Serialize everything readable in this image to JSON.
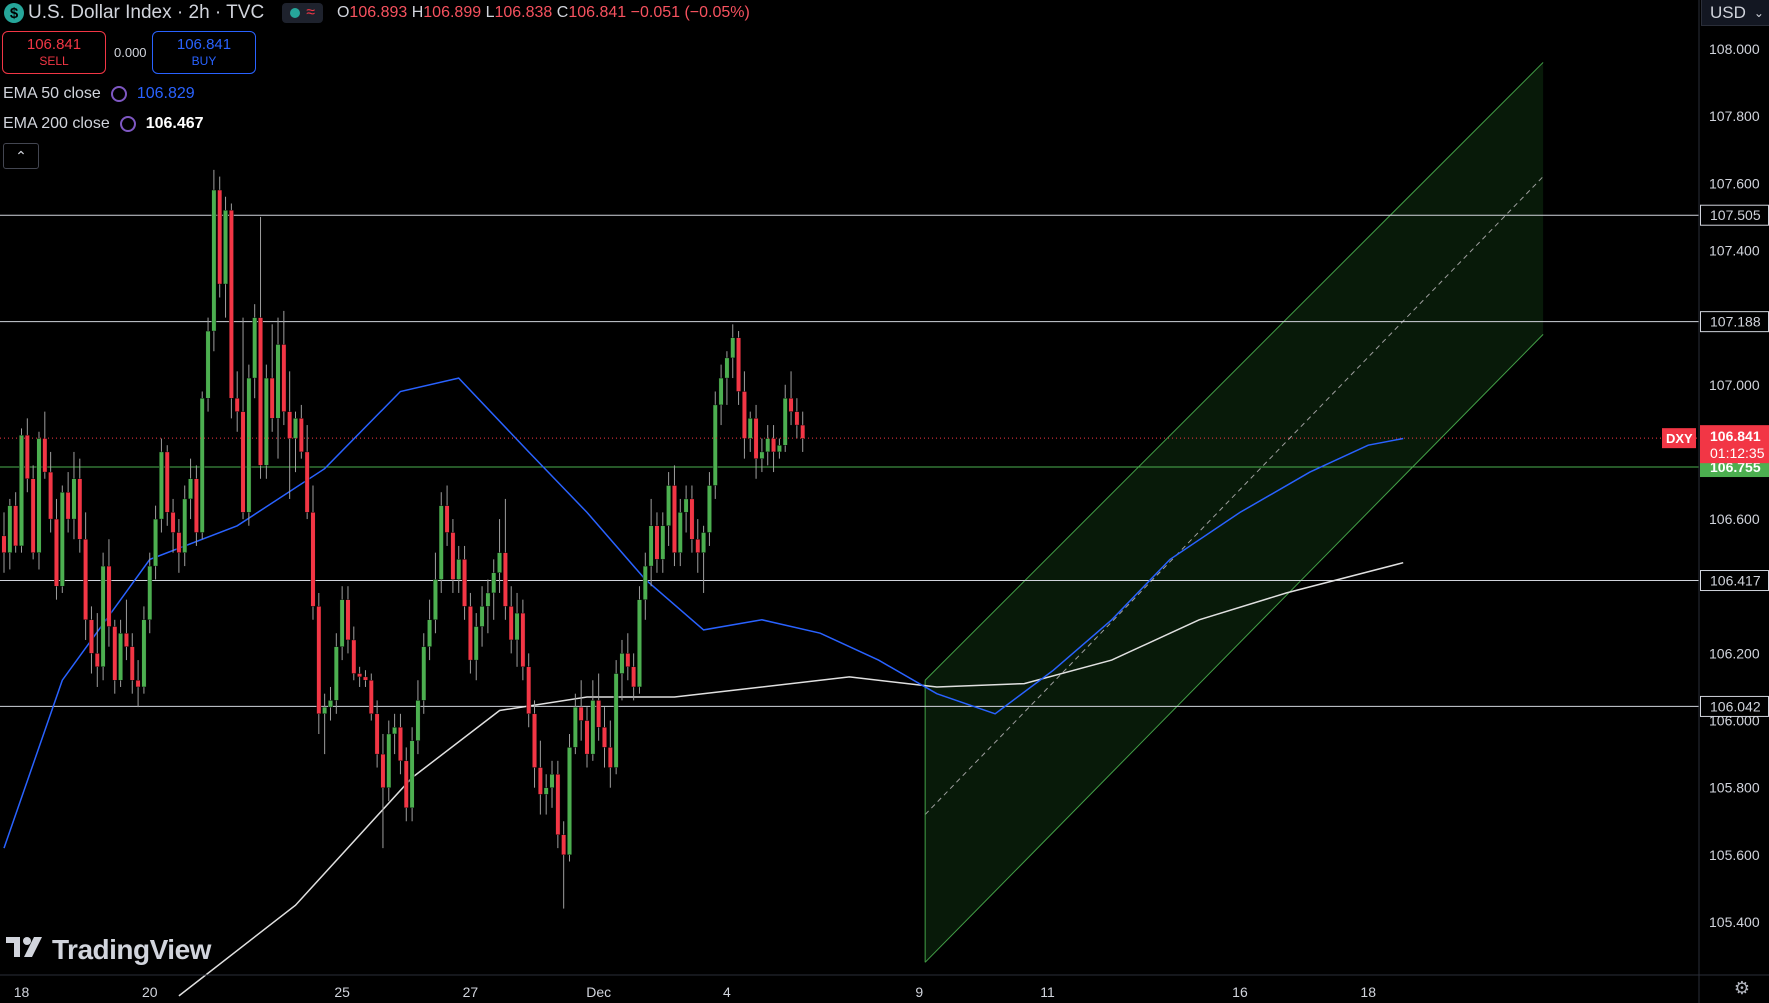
{
  "header": {
    "symbol_badge": "$",
    "title": "U.S. Dollar Index · 2h · TVC",
    "wave": "≈",
    "o_label": "O",
    "o_value": "106.893",
    "h_label": "H",
    "h_value": "106.899",
    "l_label": "L",
    "l_value": "106.838",
    "c_label": "C",
    "c_value": "106.841",
    "change": "−0.051 (−0.05%)"
  },
  "trade": {
    "sell_price": "106.841",
    "sell_label": "SELL",
    "spread": "0.000",
    "buy_price": "106.841",
    "buy_label": "BUY"
  },
  "indicators": [
    {
      "label": "EMA 50 close",
      "value": "106.829",
      "color": "#2962ff"
    },
    {
      "label": "EMA 200 close",
      "value": "106.467",
      "color": "#ffffff"
    }
  ],
  "collapse_icon": "chevron-up-icon",
  "currency": "USD",
  "currency_icon": "chevron-down-icon",
  "brand": "TradingView",
  "settings_icon": "gear-icon",
  "colors": {
    "up": "#4caf50",
    "down": "#f23645",
    "ema50": "#2962ff",
    "ema200": "#e0e0e0",
    "channel": "#1b5e20",
    "hline": "#d1d4dc",
    "green_line": "#4caf50",
    "price_dotted": "#f23645"
  },
  "chart_data": {
    "type": "candlestick",
    "symbol": "DXY",
    "ylim": [
      105.25,
      108.1
    ],
    "price_ticks": [
      "108.000",
      "107.800",
      "107.600",
      "107.400",
      "107.200",
      "107.000",
      "106.800",
      "106.600",
      "106.400",
      "106.200",
      "106.000",
      "105.800",
      "105.600",
      "105.400"
    ],
    "date_ticks": [
      {
        "label": "18",
        "bar": 3
      },
      {
        "label": "20",
        "bar": 25
      },
      {
        "label": "25",
        "bar": 58
      },
      {
        "label": "27",
        "bar": 80
      },
      {
        "label": "Dec",
        "bar": 102
      },
      {
        "label": "4",
        "bar": 124
      },
      {
        "label": "9",
        "bar": 157
      },
      {
        "label": "11",
        "bar": 179
      },
      {
        "label": "16",
        "bar": 212
      },
      {
        "label": "18",
        "bar": 234
      }
    ],
    "horizontal_levels": [
      {
        "value": 107.505,
        "label": "107.505"
      },
      {
        "value": 107.188,
        "label": "107.188"
      },
      {
        "value": 106.417,
        "label": "106.417"
      },
      {
        "value": 106.042,
        "label": "106.042"
      }
    ],
    "green_level": {
      "value": 106.755,
      "label": "106.755"
    },
    "last_price": {
      "value": 106.841,
      "label": "106.841",
      "countdown": "01:12:35",
      "tag": "DXY"
    },
    "channel": {
      "upper": [
        [
          158,
          106.12
        ],
        [
          264,
          107.96
        ]
      ],
      "middle": [
        [
          158,
          105.72
        ],
        [
          264,
          107.62
        ]
      ],
      "lower": [
        [
          158,
          105.28
        ],
        [
          264,
          107.15
        ]
      ]
    },
    "ema50": [
      [
        0,
        105.62
      ],
      [
        10,
        106.12
      ],
      [
        25,
        106.48
      ],
      [
        40,
        106.58
      ],
      [
        55,
        106.75
      ],
      [
        68,
        106.98
      ],
      [
        78,
        107.02
      ],
      [
        90,
        106.8
      ],
      [
        100,
        106.62
      ],
      [
        110,
        106.42
      ],
      [
        120,
        106.27
      ],
      [
        130,
        106.3
      ],
      [
        140,
        106.26
      ],
      [
        150,
        106.18
      ],
      [
        160,
        106.08
      ],
      [
        170,
        106.02
      ],
      [
        180,
        106.15
      ],
      [
        190,
        106.3
      ],
      [
        200,
        106.48
      ],
      [
        212,
        106.62
      ],
      [
        224,
        106.74
      ],
      [
        234,
        106.82
      ],
      [
        240,
        106.84
      ]
    ],
    "ema200": [
      [
        30,
        105.18
      ],
      [
        50,
        105.45
      ],
      [
        70,
        105.83
      ],
      [
        85,
        106.03
      ],
      [
        100,
        106.07
      ],
      [
        115,
        106.07
      ],
      [
        130,
        106.1
      ],
      [
        145,
        106.13
      ],
      [
        160,
        106.1
      ],
      [
        175,
        106.11
      ],
      [
        190,
        106.18
      ],
      [
        205,
        106.3
      ],
      [
        220,
        106.38
      ],
      [
        240,
        106.47
      ]
    ],
    "candles": [
      [
        106.55,
        106.62,
        106.44,
        106.5
      ],
      [
        106.5,
        106.66,
        106.45,
        106.64
      ],
      [
        106.64,
        106.68,
        106.5,
        106.52
      ],
      [
        106.52,
        106.87,
        106.5,
        106.85
      ],
      [
        106.85,
        106.9,
        106.68,
        106.72
      ],
      [
        106.72,
        106.76,
        106.48,
        106.5
      ],
      [
        106.5,
        106.86,
        106.45,
        106.84
      ],
      [
        106.84,
        106.92,
        106.72,
        106.74
      ],
      [
        106.74,
        106.8,
        106.56,
        106.6
      ],
      [
        106.6,
        106.66,
        106.36,
        106.4
      ],
      [
        106.4,
        106.7,
        106.38,
        106.68
      ],
      [
        106.68,
        106.74,
        106.56,
        106.6
      ],
      [
        106.6,
        106.8,
        106.54,
        106.72
      ],
      [
        106.72,
        106.78,
        106.5,
        106.54
      ],
      [
        106.54,
        106.62,
        106.24,
        106.3
      ],
      [
        106.3,
        106.34,
        106.14,
        106.2
      ],
      [
        106.2,
        106.32,
        106.1,
        106.16
      ],
      [
        106.16,
        106.5,
        106.12,
        106.46
      ],
      [
        106.46,
        106.54,
        106.22,
        106.28
      ],
      [
        106.28,
        106.3,
        106.08,
        106.12
      ],
      [
        106.12,
        106.3,
        106.1,
        106.26
      ],
      [
        106.26,
        106.36,
        106.18,
        106.22
      ],
      [
        106.22,
        106.26,
        106.08,
        106.12
      ],
      [
        106.12,
        106.18,
        106.04,
        106.1
      ],
      [
        106.1,
        106.34,
        106.08,
        106.3
      ],
      [
        106.3,
        106.5,
        106.26,
        106.46
      ],
      [
        106.46,
        106.64,
        106.42,
        106.6
      ],
      [
        106.6,
        106.84,
        106.56,
        106.8
      ],
      [
        106.8,
        106.82,
        106.58,
        106.62
      ],
      [
        106.62,
        106.66,
        106.5,
        106.56
      ],
      [
        106.56,
        106.6,
        106.44,
        106.5
      ],
      [
        106.5,
        106.7,
        106.46,
        106.66
      ],
      [
        106.66,
        106.78,
        106.6,
        106.72
      ],
      [
        106.72,
        106.76,
        106.52,
        106.56
      ],
      [
        106.56,
        106.98,
        106.54,
        106.96
      ],
      [
        106.96,
        107.2,
        106.92,
        107.16
      ],
      [
        107.16,
        107.64,
        107.1,
        107.58
      ],
      [
        107.58,
        107.62,
        107.26,
        107.3
      ],
      [
        107.3,
        107.56,
        107.2,
        107.52
      ],
      [
        107.52,
        107.54,
        106.9,
        106.96
      ],
      [
        106.96,
        107.04,
        106.86,
        106.92
      ],
      [
        106.92,
        107.2,
        106.6,
        106.62
      ],
      [
        106.62,
        107.06,
        106.58,
        107.02
      ],
      [
        107.02,
        107.24,
        106.96,
        107.2
      ],
      [
        107.2,
        107.5,
        106.72,
        106.76
      ],
      [
        106.76,
        107.06,
        106.72,
        107.02
      ],
      [
        107.02,
        107.18,
        106.86,
        106.9
      ],
      [
        106.9,
        107.2,
        106.78,
        107.12
      ],
      [
        107.12,
        107.22,
        106.88,
        106.92
      ],
      [
        106.92,
        107.04,
        106.66,
        106.84
      ],
      [
        106.84,
        106.92,
        106.74,
        106.9
      ],
      [
        106.9,
        106.94,
        106.78,
        106.8
      ],
      [
        106.8,
        106.88,
        106.6,
        106.62
      ],
      [
        106.62,
        106.7,
        106.3,
        106.34
      ],
      [
        106.34,
        106.38,
        105.96,
        106.02
      ],
      [
        106.02,
        106.08,
        105.9,
        106.04
      ],
      [
        106.04,
        106.1,
        106.0,
        106.06
      ],
      [
        106.06,
        106.26,
        106.02,
        106.22
      ],
      [
        106.22,
        106.4,
        106.18,
        106.36
      ],
      [
        106.36,
        106.4,
        106.2,
        106.24
      ],
      [
        106.24,
        106.28,
        106.12,
        106.14
      ],
      [
        106.14,
        106.16,
        106.1,
        106.13
      ],
      [
        106.13,
        106.15,
        106.1,
        106.12
      ],
      [
        106.12,
        106.14,
        106.0,
        106.02
      ],
      [
        106.02,
        106.06,
        105.86,
        105.9
      ],
      [
        105.9,
        105.96,
        105.62,
        105.8
      ],
      [
        105.8,
        106.0,
        105.76,
        105.96
      ],
      [
        105.96,
        106.02,
        105.9,
        105.98
      ],
      [
        105.98,
        106.02,
        105.84,
        105.88
      ],
      [
        105.88,
        105.92,
        105.7,
        105.74
      ],
      [
        105.74,
        105.98,
        105.7,
        105.94
      ],
      [
        105.94,
        106.12,
        105.9,
        106.06
      ],
      [
        106.06,
        106.26,
        106.02,
        106.22
      ],
      [
        106.22,
        106.36,
        106.18,
        106.3
      ],
      [
        106.3,
        106.5,
        106.26,
        106.42
      ],
      [
        106.42,
        106.68,
        106.38,
        106.64
      ],
      [
        106.64,
        106.7,
        106.52,
        106.56
      ],
      [
        106.56,
        106.6,
        106.38,
        106.42
      ],
      [
        106.42,
        106.52,
        106.38,
        106.48
      ],
      [
        106.48,
        106.52,
        106.3,
        106.34
      ],
      [
        106.34,
        106.38,
        106.14,
        106.18
      ],
      [
        106.18,
        106.32,
        106.12,
        106.28
      ],
      [
        106.28,
        106.4,
        106.22,
        106.34
      ],
      [
        106.34,
        106.42,
        106.26,
        106.38
      ],
      [
        106.38,
        106.48,
        106.3,
        106.44
      ],
      [
        106.44,
        106.6,
        106.38,
        106.5
      ],
      [
        106.5,
        106.66,
        106.3,
        106.34
      ],
      [
        106.34,
        106.4,
        106.2,
        106.24
      ],
      [
        106.24,
        106.38,
        106.16,
        106.32
      ],
      [
        106.32,
        106.36,
        106.12,
        106.16
      ],
      [
        106.16,
        106.2,
        105.98,
        106.02
      ],
      [
        106.02,
        106.06,
        105.8,
        105.86
      ],
      [
        105.86,
        105.94,
        105.72,
        105.78
      ],
      [
        105.78,
        105.84,
        105.72,
        105.8
      ],
      [
        105.8,
        105.88,
        105.74,
        105.84
      ],
      [
        105.84,
        105.88,
        105.62,
        105.66
      ],
      [
        105.66,
        105.7,
        105.44,
        105.6
      ],
      [
        105.6,
        105.96,
        105.58,
        105.92
      ],
      [
        105.92,
        106.08,
        105.9,
        106.04
      ],
      [
        106.04,
        106.12,
        105.94,
        106.0
      ],
      [
        106.0,
        106.04,
        105.86,
        105.9
      ],
      [
        105.9,
        106.12,
        105.88,
        106.06
      ],
      [
        106.06,
        106.14,
        105.94,
        105.98
      ],
      [
        105.98,
        106.04,
        105.86,
        105.92
      ],
      [
        105.92,
        106.0,
        105.8,
        105.86
      ],
      [
        105.86,
        106.18,
        105.84,
        106.14
      ],
      [
        106.14,
        106.24,
        106.06,
        106.2
      ],
      [
        106.2,
        106.26,
        106.12,
        106.16
      ],
      [
        106.16,
        106.2,
        106.06,
        106.1
      ],
      [
        106.1,
        106.4,
        106.08,
        106.36
      ],
      [
        106.36,
        106.5,
        106.3,
        106.46
      ],
      [
        106.46,
        106.66,
        106.4,
        106.58
      ],
      [
        106.58,
        106.62,
        106.44,
        106.48
      ],
      [
        106.48,
        106.62,
        106.44,
        106.58
      ],
      [
        106.58,
        106.74,
        106.52,
        106.7
      ],
      [
        106.7,
        106.76,
        106.46,
        106.5
      ],
      [
        106.5,
        106.66,
        106.46,
        106.62
      ],
      [
        106.62,
        106.7,
        106.56,
        106.66
      ],
      [
        106.66,
        106.7,
        106.5,
        106.54
      ],
      [
        106.54,
        106.6,
        106.44,
        106.5
      ],
      [
        106.5,
        106.58,
        106.38,
        106.56
      ],
      [
        106.56,
        106.74,
        106.52,
        106.7
      ],
      [
        106.7,
        106.98,
        106.66,
        106.94
      ],
      [
        106.94,
        107.06,
        106.88,
        107.02
      ],
      [
        107.02,
        107.1,
        106.94,
        107.08
      ],
      [
        107.08,
        107.18,
        107.02,
        107.14
      ],
      [
        107.14,
        107.16,
        106.94,
        106.98
      ],
      [
        106.98,
        107.04,
        106.78,
        106.84
      ],
      [
        106.84,
        106.92,
        106.8,
        106.9
      ],
      [
        106.9,
        106.94,
        106.72,
        106.78
      ],
      [
        106.78,
        106.84,
        106.74,
        106.8
      ],
      [
        106.8,
        106.88,
        106.76,
        106.84
      ],
      [
        106.84,
        106.88,
        106.74,
        106.8
      ],
      [
        106.8,
        106.84,
        106.78,
        106.82
      ],
      [
        106.82,
        107.0,
        106.8,
        106.96
      ],
      [
        106.96,
        107.04,
        106.88,
        106.92
      ],
      [
        106.92,
        106.96,
        106.84,
        106.88
      ],
      [
        106.88,
        106.92,
        106.8,
        106.84
      ]
    ]
  }
}
